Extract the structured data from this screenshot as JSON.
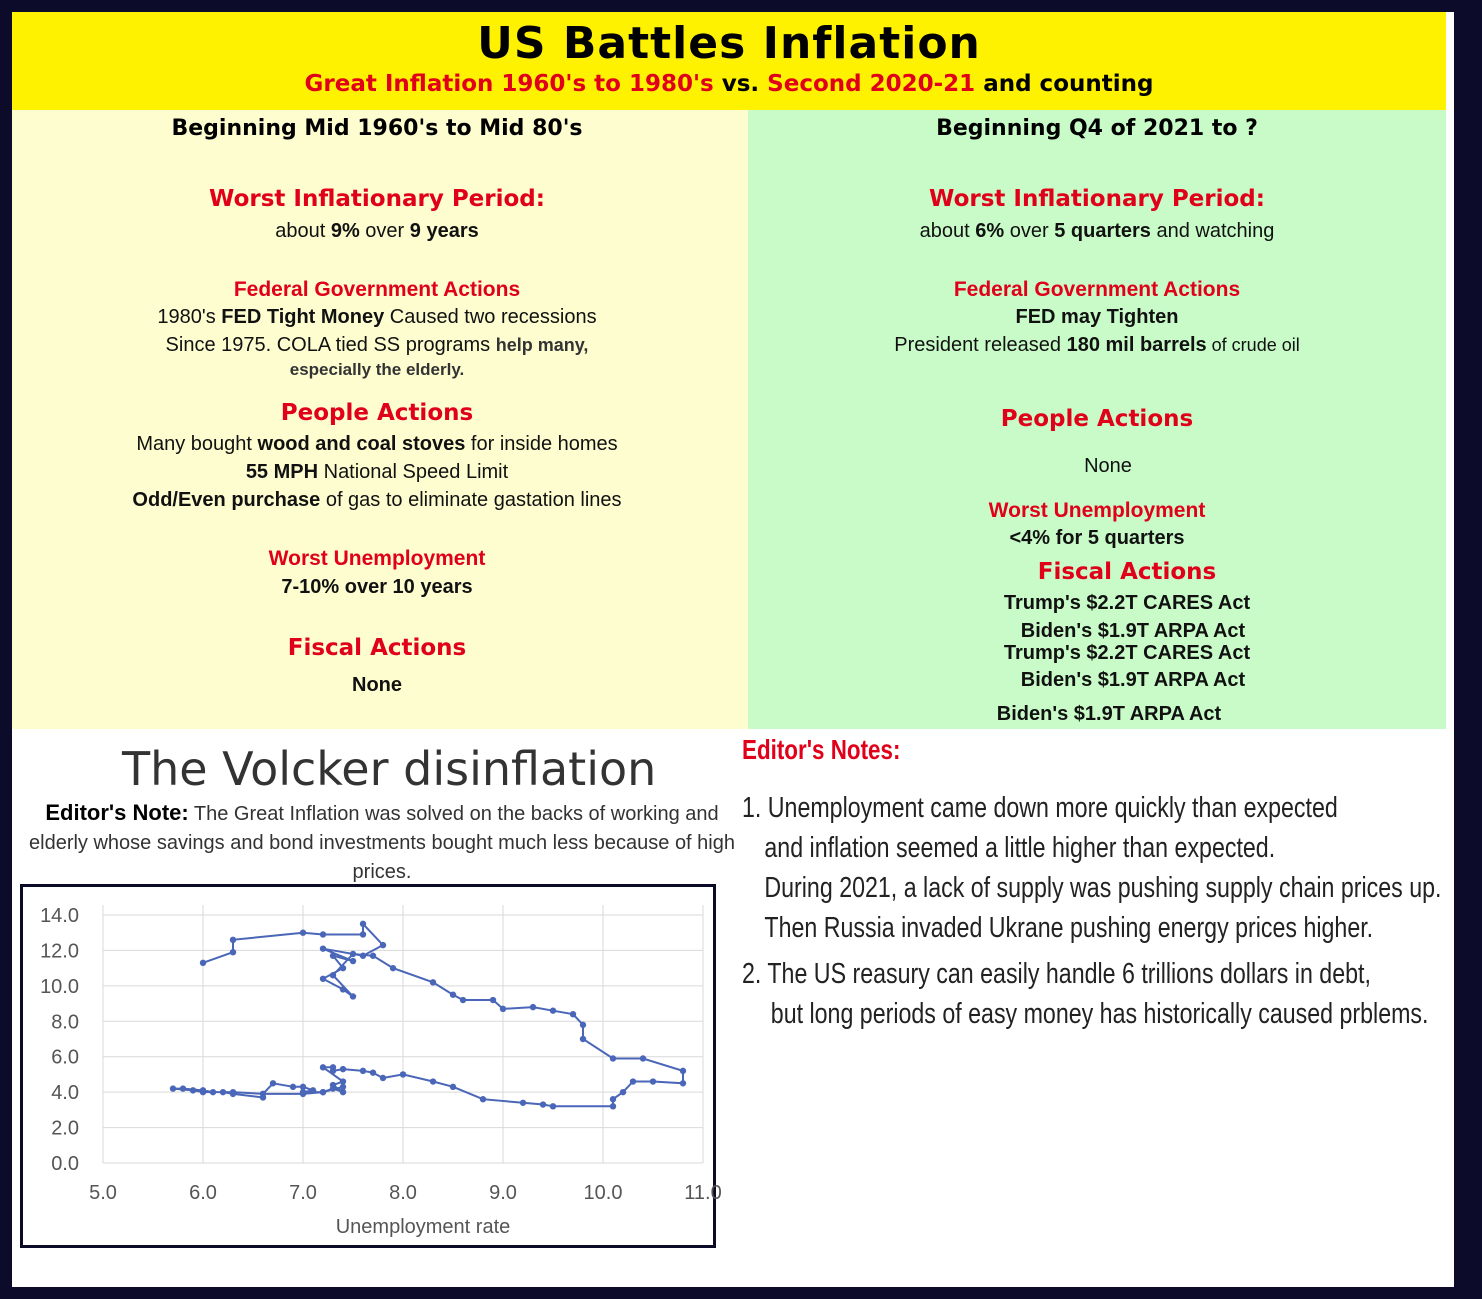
{
  "banner": {
    "title": "US Battles Inflation",
    "sub_part1": "Great Inflation 1960's to 1980's",
    "sub_vs": " vs. ",
    "sub_part2": "Second 2020-21",
    "sub_part3": " and counting"
  },
  "left": {
    "heading": "Beginning Mid 1960's to Mid 80's",
    "worst_period_title": "Worst Inflationary Period:",
    "worst_period_pre": "about ",
    "worst_period_pct": "9%",
    "worst_period_mid": " over ",
    "worst_period_years": "9 years",
    "fed_title": "Federal Government Actions",
    "fed_line1_pre": "1980's ",
    "fed_line1_bold": "FED Tight Money",
    "fed_line1_post": " Caused two  recessions",
    "fed_line2": "Since 1975. COLA tied SS programs ",
    "fed_line2_bold": "help many,",
    "fed_line3": "especially the elderly.",
    "people_title": "People Actions",
    "people_line1_pre": "Many bought ",
    "people_line1_bold": "wood and coal stoves",
    "people_line1_post": " for inside homes",
    "people_line2_bold": "55 MPH",
    "people_line2_post": " National Speed Limit",
    "people_line3_bold": "Odd/Even purchase",
    "people_line3_post": " of gas to eliminate gastation lines",
    "unemp_title": "Worst Unemployment",
    "unemp_value": "7-10% over 10 years",
    "fiscal_title": "Fiscal Actions",
    "fiscal_value": "None"
  },
  "right": {
    "heading": "Beginning Q4 of 2021 to ?",
    "worst_period_title": "Worst Inflationary Period:",
    "worst_period_pre": "about ",
    "worst_period_pct": "6%",
    "worst_period_mid": " over ",
    "worst_period_quarters": "5 quarters",
    "worst_period_post": " and watching",
    "fed_title": "Federal Government Actions",
    "fed_line1": "FED may Tighten",
    "fed_line2_pre": "President released ",
    "fed_line2_bold": "180 mil barrels",
    "fed_line2_post": " of crude oil",
    "people_title": "People Actions",
    "people_value": "None",
    "unemp_title": "Worst Unemployment",
    "unemp_value": "<4% for 5 quarters",
    "fiscal_title": "Fiscal Actions",
    "fiscal_line1": "Trump's $2.2T CARES Act",
    "fiscal_line2": "Biden's $1.9T ARPA Act",
    "fiscal_line3": "Trump's $2.2T CARES Act",
    "fiscal_line4": "Biden's $1.9T ARPA Act",
    "fiscal_line5": "Biden's $1.9T ARPA Act"
  },
  "volcker": {
    "title": "The Volcker disinflation",
    "note_label": "Editor's Note:",
    "note_text": " The Great Inflation was solved on the backs of working and elderly whose savings and bond investments bought much less because of high prices."
  },
  "editors_notes": {
    "title": "Editor's Notes:",
    "item1_num": "1.",
    "item1_line1": "Unemployment came down more quickly than expected",
    "item1_line2": "and inflation seemed a little higher than expected.",
    "item1_line3": "During 2021, a lack of supply was pushing supply chain prices up.",
    "item1_line4": "Then Russia invaded Ukrane pushing energy prices higher.",
    "item2_num": "2.",
    "item2_line1": "The US reasury can easily handle 6 trillions dollars in debt,",
    "item2_line2": "but long periods of easy money has historically caused prblems."
  },
  "chart_data": {
    "type": "line",
    "xlabel": "Unemployment rate",
    "ylabel": "",
    "xlim": [
      5.0,
      11.0
    ],
    "ylim": [
      0.0,
      14.0
    ],
    "xticks": [
      "5.0",
      "6.0",
      "7.0",
      "8.0",
      "9.0",
      "10.0",
      "11.0"
    ],
    "yticks": [
      "0.0",
      "2.0",
      "4.0",
      "6.0",
      "8.0",
      "10.0",
      "12.0",
      "14.0"
    ],
    "grid": true,
    "color": "#4a66b8",
    "series": [
      {
        "name": "",
        "points": [
          [
            6.0,
            11.3
          ],
          [
            6.3,
            11.9
          ],
          [
            6.3,
            12.6
          ],
          [
            7.0,
            13.0
          ],
          [
            7.2,
            12.9
          ],
          [
            7.6,
            12.9
          ],
          [
            7.6,
            13.5
          ],
          [
            7.8,
            12.3
          ],
          [
            7.6,
            11.7
          ],
          [
            7.2,
            12.1
          ],
          [
            7.5,
            11.4
          ],
          [
            7.3,
            11.7
          ],
          [
            7.4,
            11.0
          ],
          [
            7.2,
            10.4
          ],
          [
            7.4,
            9.8
          ],
          [
            7.5,
            9.4
          ],
          [
            7.3,
            10.6
          ],
          [
            7.5,
            11.8
          ],
          [
            7.7,
            11.7
          ],
          [
            7.9,
            11.0
          ],
          [
            8.3,
            10.2
          ],
          [
            8.5,
            9.5
          ],
          [
            8.6,
            9.2
          ],
          [
            8.9,
            9.2
          ],
          [
            9.0,
            8.7
          ],
          [
            9.3,
            8.8
          ],
          [
            9.5,
            8.6
          ],
          [
            9.7,
            8.4
          ],
          [
            9.8,
            7.8
          ],
          [
            9.8,
            7.0
          ],
          [
            10.1,
            5.9
          ],
          [
            10.4,
            5.9
          ],
          [
            10.8,
            5.2
          ],
          [
            10.8,
            4.5
          ],
          [
            10.5,
            4.6
          ],
          [
            10.3,
            4.6
          ],
          [
            10.2,
            4.0
          ],
          [
            10.1,
            3.6
          ],
          [
            10.1,
            3.2
          ],
          [
            9.5,
            3.2
          ],
          [
            9.4,
            3.3
          ],
          [
            9.2,
            3.4
          ],
          [
            8.8,
            3.6
          ],
          [
            8.5,
            4.3
          ],
          [
            8.3,
            4.6
          ],
          [
            8.0,
            5.0
          ],
          [
            7.8,
            4.8
          ],
          [
            7.7,
            5.1
          ],
          [
            7.6,
            5.2
          ],
          [
            7.4,
            5.3
          ],
          [
            7.3,
            5.2
          ],
          [
            7.3,
            5.4
          ],
          [
            7.2,
            5.4
          ],
          [
            7.4,
            4.6
          ],
          [
            7.3,
            4.4
          ],
          [
            7.4,
            4.0
          ],
          [
            7.3,
            4.2
          ],
          [
            7.2,
            4.0
          ],
          [
            7.0,
            4.0
          ],
          [
            7.1,
            4.1
          ],
          [
            7.0,
            4.3
          ],
          [
            6.9,
            4.3
          ],
          [
            6.7,
            4.5
          ],
          [
            6.6,
            3.9
          ],
          [
            6.6,
            3.7
          ],
          [
            6.3,
            3.9
          ],
          [
            6.2,
            4.0
          ],
          [
            6.0,
            4.0
          ],
          [
            5.9,
            4.1
          ],
          [
            5.7,
            4.2
          ],
          [
            5.8,
            4.2
          ],
          [
            6.0,
            4.1
          ],
          [
            6.1,
            4.0
          ],
          [
            6.3,
            4.0
          ],
          [
            6.6,
            3.9
          ],
          [
            7.0,
            3.9
          ],
          [
            7.2,
            4.0
          ],
          [
            7.4,
            4.3
          ]
        ]
      }
    ]
  }
}
